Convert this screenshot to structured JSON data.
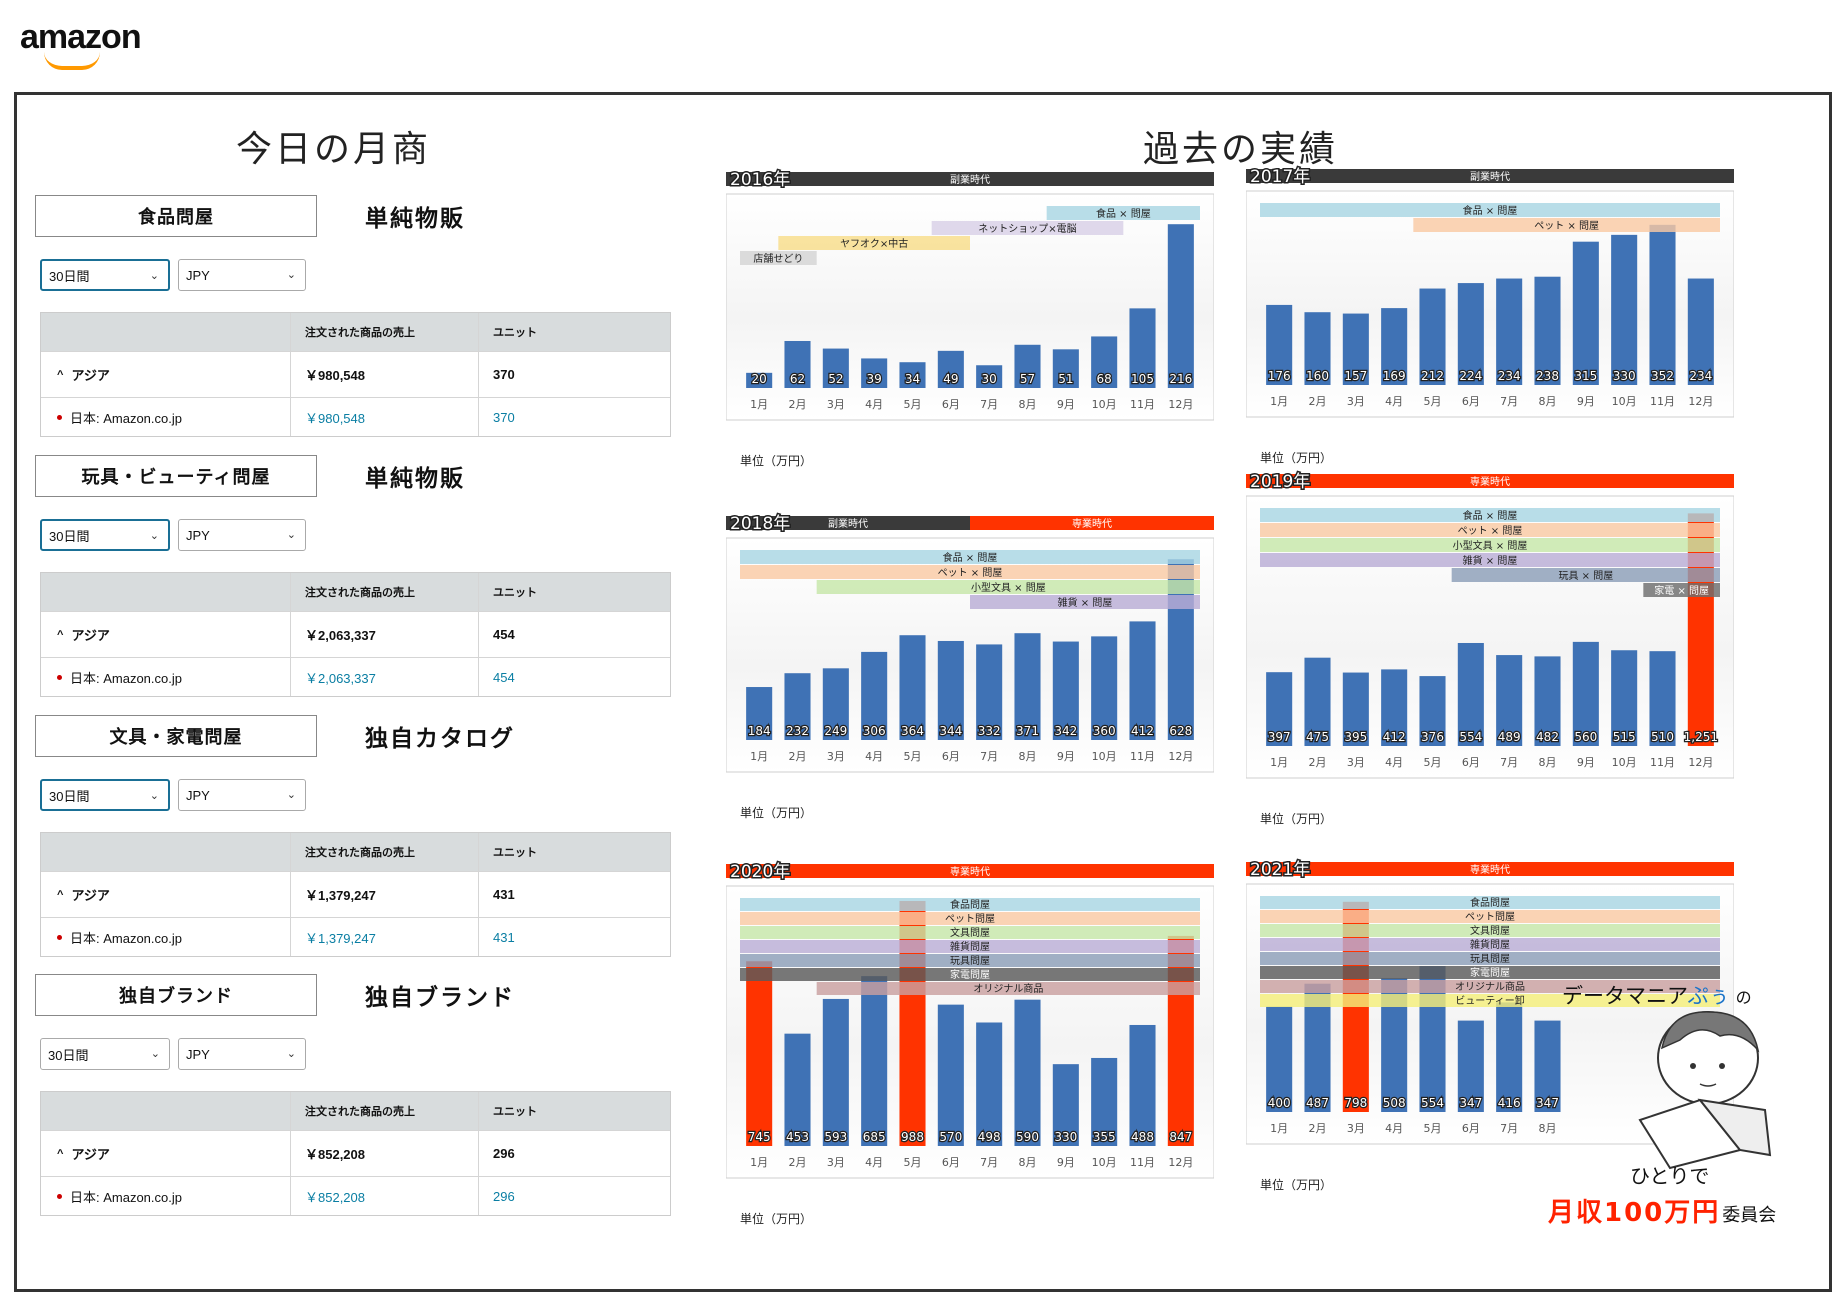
{
  "brand": {
    "logo_text": "amazon"
  },
  "left": {
    "title": "今日の月商",
    "table_headers": {
      "sales": "注文された商品の売上",
      "units": "ユニット"
    },
    "region_label": "アジア",
    "market_label": "日本: Amazon.co.jp",
    "categories": [
      {
        "name": "食品問屋",
        "kind": "単純物販",
        "period": "30日間",
        "currency": "JPY",
        "asia_sales": "￥980,548",
        "asia_units": "370",
        "jp_sales": "￥980,548",
        "jp_units": "370"
      },
      {
        "name": "玩具・ビューティ問屋",
        "kind": "単純物販",
        "period": "30日間",
        "currency": "JPY",
        "asia_sales": "￥2,063,337",
        "asia_units": "454",
        "jp_sales": "￥2,063,337",
        "jp_units": "454"
      },
      {
        "name": "文具・家電問屋",
        "kind": "独自カタログ",
        "period": "30日間",
        "currency": "JPY",
        "asia_sales": "￥1,379,247",
        "asia_units": "431",
        "jp_sales": "￥1,379,247",
        "jp_units": "431"
      },
      {
        "name": "独自ブランド",
        "kind": "独自ブランド",
        "period": "30日間",
        "currency": "JPY",
        "asia_sales": "￥852,208",
        "asia_units": "296",
        "jp_sales": "￥852,208",
        "jp_units": "296"
      }
    ]
  },
  "right": {
    "title": "過去の実績",
    "unit_label": "単位（万円）"
  },
  "mascot": {
    "line1a": "データマニア",
    "line1b": "ぷぅ",
    "line1c": "の",
    "line2": "ひとりで",
    "line3a": "月収100万円",
    "line3b": "委員会"
  },
  "colors": {
    "bar": "#3f72b5",
    "bar_red": "#ff3300",
    "side_header": "#3a3a3a",
    "senmon_header": "#ff3300"
  },
  "chart_data": [
    {
      "type": "bar",
      "year_label": "2016年",
      "periods": [
        {
          "label": "副業時代",
          "kind": "side"
        }
      ],
      "categories": [
        "1月",
        "2月",
        "3月",
        "4月",
        "5月",
        "6月",
        "7月",
        "8月",
        "9月",
        "10月",
        "11月",
        "12月"
      ],
      "values": [
        20,
        62,
        52,
        39,
        34,
        49,
        30,
        57,
        51,
        68,
        105,
        216
      ],
      "highlight": [],
      "bands": [
        {
          "label": "食品 × 問屋",
          "color": "#a8d6e3"
        },
        {
          "label": "ネットショップ×電脳",
          "color": "#d8cfe6"
        },
        {
          "label": "ヤフオク×中古",
          "color": "#f8dd8a"
        },
        {
          "label": "店舗せどり",
          "color": "#d4d4d4"
        }
      ]
    },
    {
      "type": "bar",
      "year_label": "2017年",
      "periods": [
        {
          "label": "副業時代",
          "kind": "side"
        }
      ],
      "categories": [
        "1月",
        "2月",
        "3月",
        "4月",
        "5月",
        "6月",
        "7月",
        "8月",
        "9月",
        "10月",
        "11月",
        "12月"
      ],
      "values": [
        176,
        160,
        157,
        169,
        212,
        224,
        234,
        238,
        315,
        330,
        352,
        234
      ],
      "highlight": [],
      "bands": [
        {
          "label": "食品 × 問屋",
          "color": "#a8d6e3"
        },
        {
          "label": "ペット × 問屋",
          "color": "#f9c9a4"
        }
      ]
    },
    {
      "type": "bar",
      "year_label": "2018年",
      "periods": [
        {
          "label": "副業時代",
          "kind": "side"
        },
        {
          "label": "専業時代",
          "kind": "senmon"
        }
      ],
      "categories": [
        "1月",
        "2月",
        "3月",
        "4月",
        "5月",
        "6月",
        "7月",
        "8月",
        "9月",
        "10月",
        "11月",
        "12月"
      ],
      "values": [
        184,
        232,
        249,
        306,
        364,
        344,
        332,
        371,
        342,
        360,
        412,
        628
      ],
      "highlight": [],
      "bands": [
        {
          "label": "食品 × 問屋",
          "color": "#a8d6e3"
        },
        {
          "label": "ペット × 問屋",
          "color": "#f9c9a4"
        },
        {
          "label": "小型文具 × 問屋",
          "color": "#c6e6a8"
        },
        {
          "label": "雑貨 × 問屋",
          "color": "#b9add6"
        }
      ]
    },
    {
      "type": "bar",
      "year_label": "2019年",
      "periods": [
        {
          "label": "専業時代",
          "kind": "senmon"
        }
      ],
      "categories": [
        "1月",
        "2月",
        "3月",
        "4月",
        "5月",
        "6月",
        "7月",
        "8月",
        "9月",
        "10月",
        "11月",
        "12月"
      ],
      "values": [
        397,
        475,
        395,
        412,
        376,
        554,
        489,
        482,
        560,
        515,
        510,
        1251
      ],
      "value_labels": [
        "397",
        "475",
        "395",
        "412",
        "376",
        "554",
        "489",
        "482",
        "560",
        "515",
        "510",
        "1,251"
      ],
      "highlight": [
        11
      ],
      "bands": [
        {
          "label": "食品 × 問屋",
          "color": "#a8d6e3"
        },
        {
          "label": "ペット × 問屋",
          "color": "#f9c9a4"
        },
        {
          "label": "小型文具 × 問屋",
          "color": "#c6e6a8"
        },
        {
          "label": "雑貨 × 問屋",
          "color": "#b9add6"
        },
        {
          "label": "玩具 × 問屋",
          "color": "#8c9fb8"
        },
        {
          "label": "家電 × 問屋",
          "color": "#6e6e6e"
        }
      ]
    },
    {
      "type": "bar",
      "year_label": "2020年",
      "periods": [
        {
          "label": "専業時代",
          "kind": "senmon"
        }
      ],
      "categories": [
        "1月",
        "2月",
        "3月",
        "4月",
        "5月",
        "6月",
        "7月",
        "8月",
        "9月",
        "10月",
        "11月",
        "12月"
      ],
      "values": [
        745,
        453,
        593,
        685,
        988,
        570,
        498,
        590,
        330,
        355,
        488,
        847
      ],
      "highlight": [
        0,
        4,
        11
      ],
      "bands": [
        {
          "label": "食品問屋",
          "color": "#a8d6e3"
        },
        {
          "label": "ペット問屋",
          "color": "#f9c9a4"
        },
        {
          "label": "文具問屋",
          "color": "#c6e6a8"
        },
        {
          "label": "雑貨問屋",
          "color": "#b9add6"
        },
        {
          "label": "玩具問屋",
          "color": "#8c9fb8"
        },
        {
          "label": "家電問屋",
          "color": "#5a5a5a"
        },
        {
          "label": "オリジナル商品",
          "color": "#c9a0a0"
        }
      ]
    },
    {
      "type": "bar",
      "year_label": "2021年",
      "periods": [
        {
          "label": "専業時代",
          "kind": "senmon"
        }
      ],
      "categories": [
        "1月",
        "2月",
        "3月",
        "4月",
        "5月",
        "6月",
        "7月",
        "8月"
      ],
      "values": [
        400,
        487,
        798,
        508,
        554,
        347,
        416,
        347
      ],
      "highlight": [
        2
      ],
      "bands": [
        {
          "label": "食品問屋",
          "color": "#a8d6e3"
        },
        {
          "label": "ペット問屋",
          "color": "#f9c9a4"
        },
        {
          "label": "文具問屋",
          "color": "#c6e6a8"
        },
        {
          "label": "雑貨問屋",
          "color": "#b9add6"
        },
        {
          "label": "玩具問屋",
          "color": "#8c9fb8"
        },
        {
          "label": "家電問屋",
          "color": "#5a5a5a"
        },
        {
          "label": "オリジナル商品",
          "color": "#c9a0a0"
        },
        {
          "label": "ビューティー卸",
          "color": "#f4ee7a"
        }
      ]
    }
  ]
}
